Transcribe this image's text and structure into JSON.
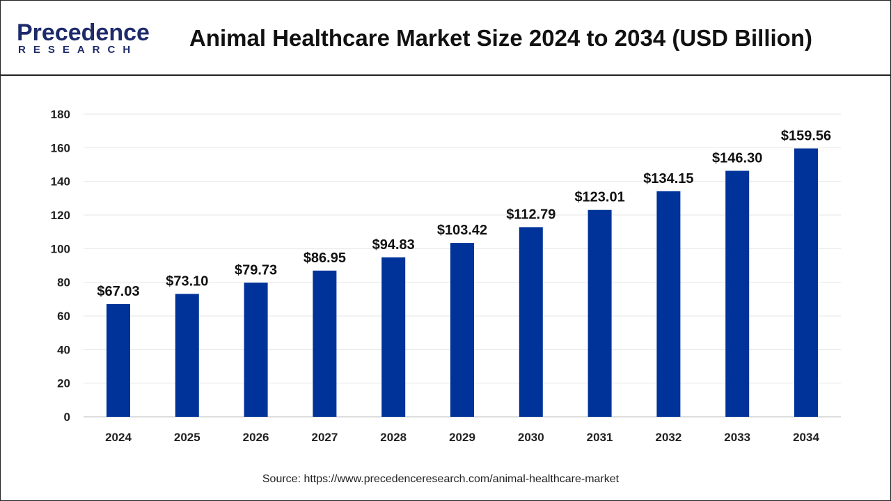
{
  "header": {
    "logo_line1": "Precedence",
    "logo_line2": "RESEARCH",
    "title": "Animal Healthcare Market Size 2024 to 2034 (USD Billion)"
  },
  "source": "Source: https://www.precedenceresearch.com/animal-healthcare-market",
  "chart_data": {
    "type": "bar",
    "title": "Animal Healthcare Market Size 2024 to 2034 (USD Billion)",
    "categories": [
      "2024",
      "2025",
      "2026",
      "2027",
      "2028",
      "2029",
      "2030",
      "2031",
      "2032",
      "2033",
      "2034"
    ],
    "values": [
      67.03,
      73.1,
      79.73,
      86.95,
      94.83,
      103.42,
      112.79,
      123.01,
      134.15,
      146.3,
      159.56
    ],
    "data_labels": [
      "$67.03",
      "$73.10",
      "$79.73",
      "$86.95",
      "$94.83",
      "$103.42",
      "$112.79",
      "$123.01",
      "$134.15",
      "$146.30",
      "$159.56"
    ],
    "ylim": [
      0,
      180
    ],
    "yticks": [
      0,
      20,
      40,
      60,
      80,
      100,
      120,
      140,
      160,
      180
    ],
    "grid": true,
    "bar_color": "#00339a",
    "xlabel": "",
    "ylabel": ""
  }
}
